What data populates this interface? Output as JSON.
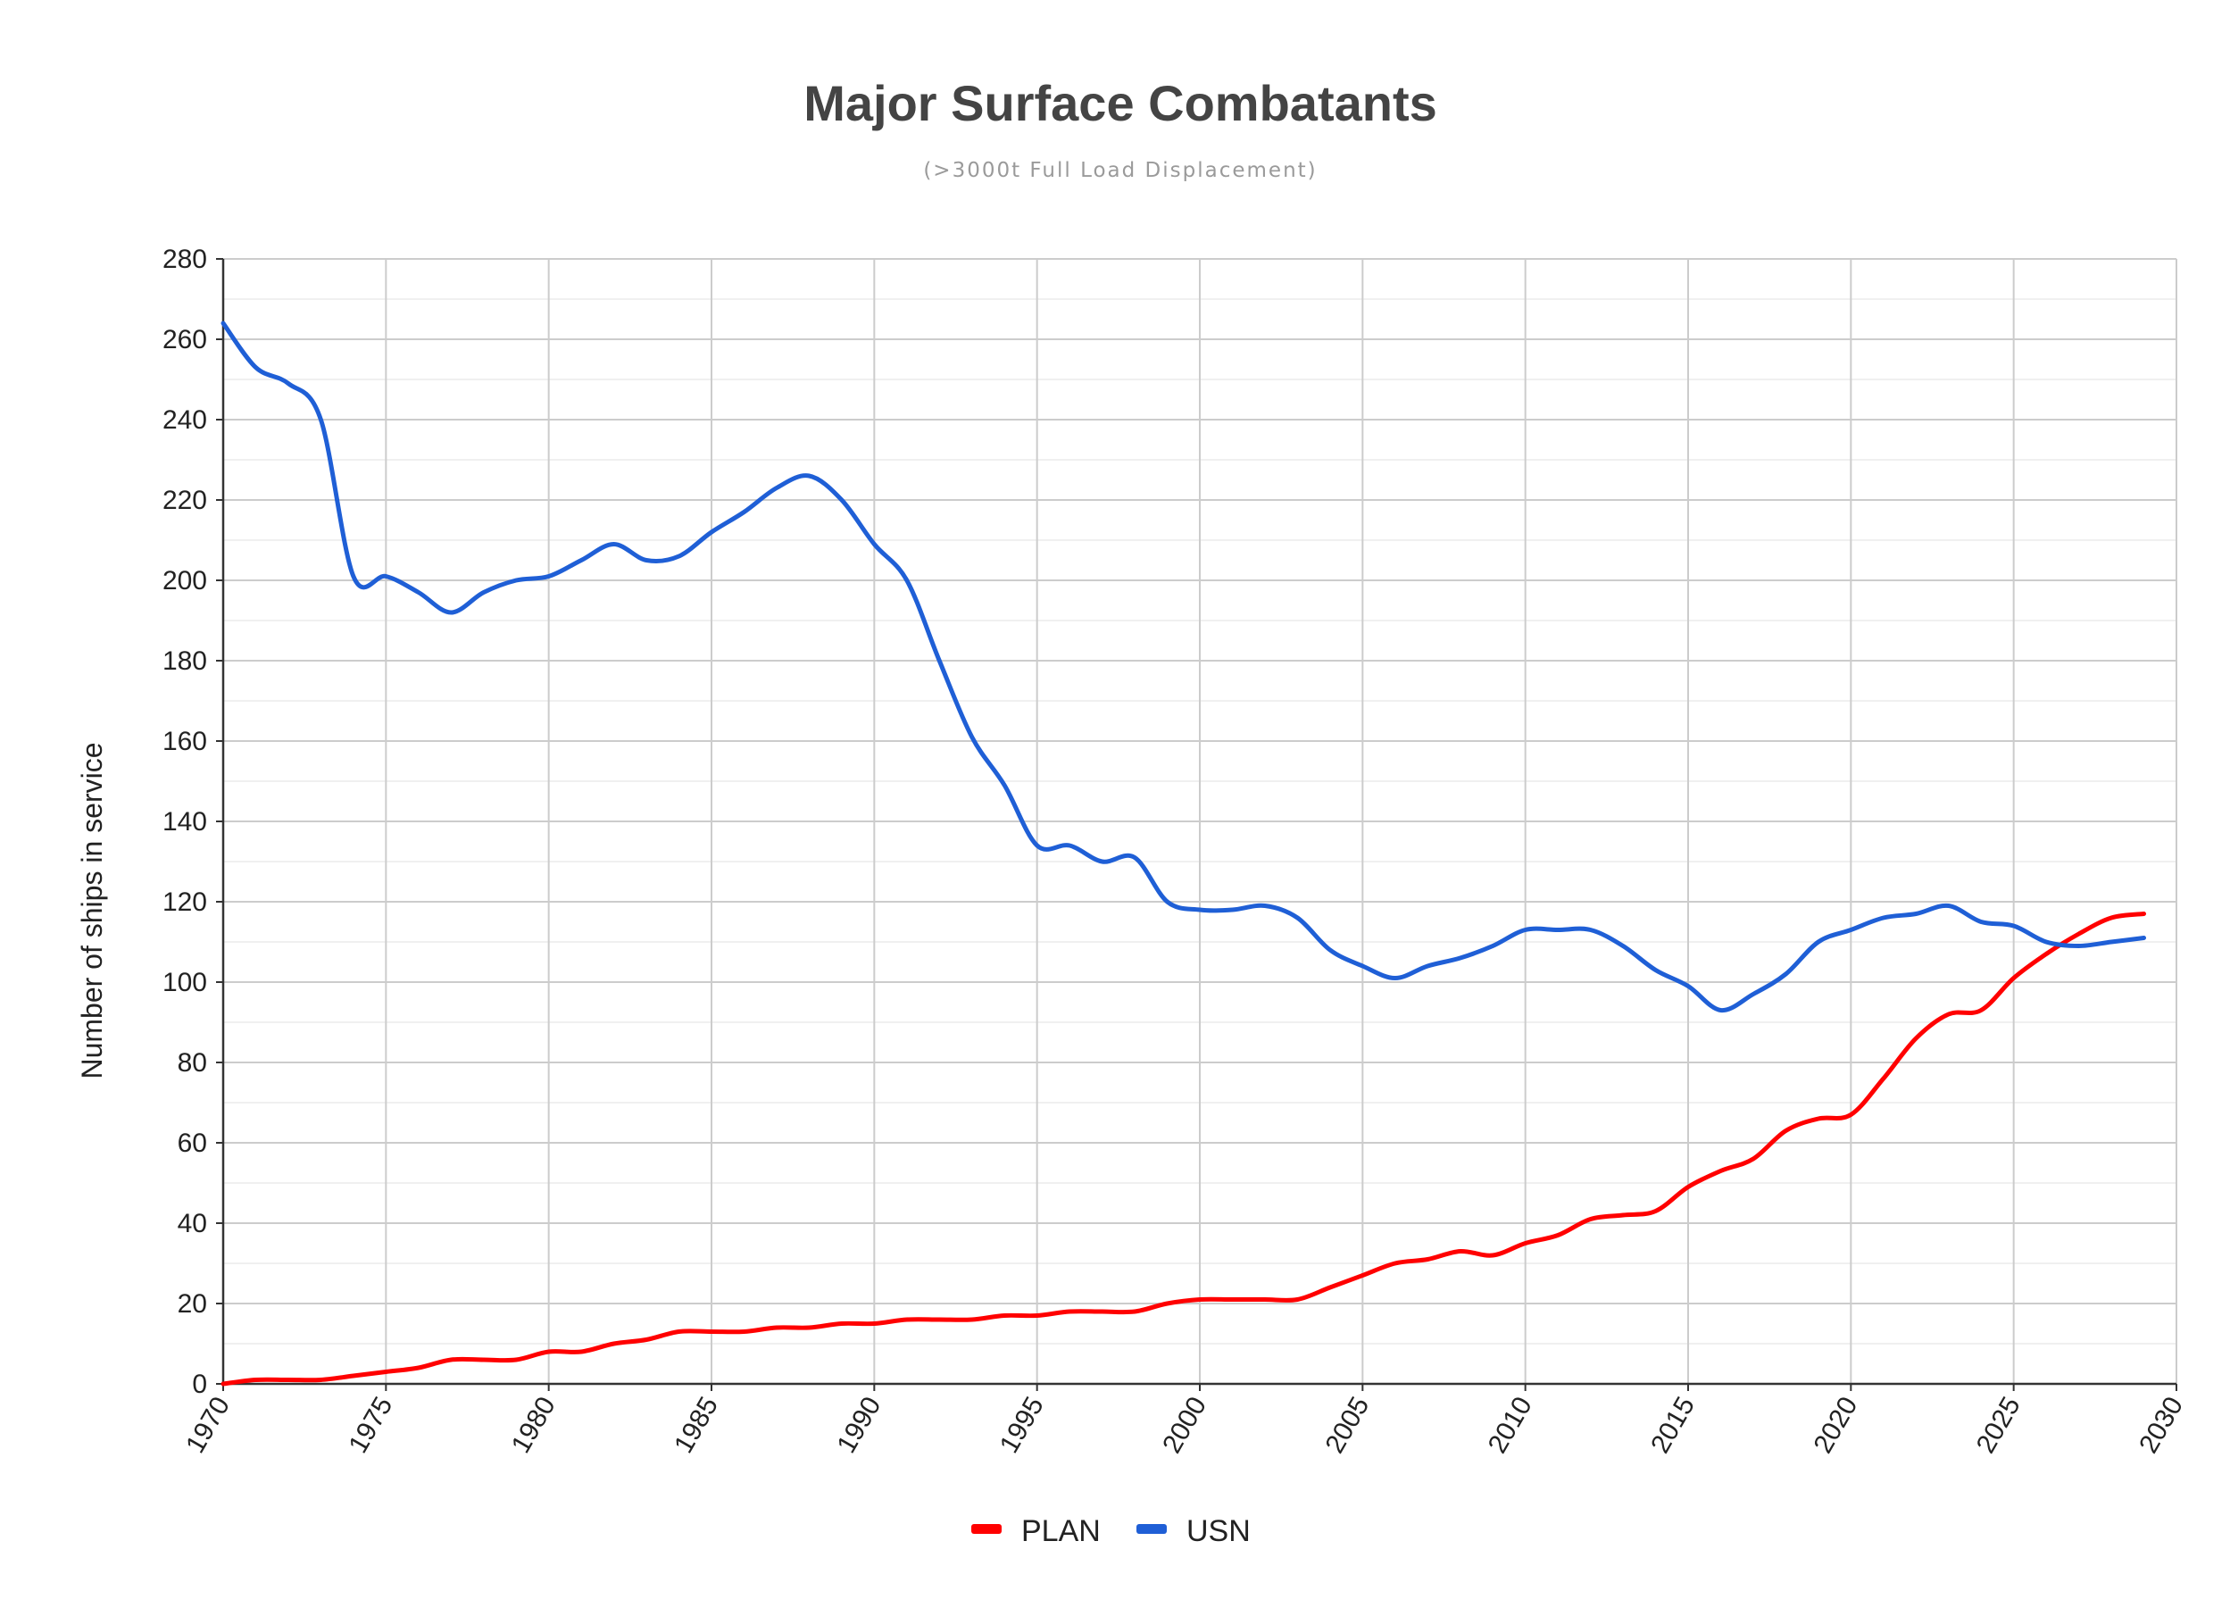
{
  "chart_data": {
    "type": "line",
    "title": "Major Surface Combatants",
    "subtitle": "(>3000t Full Load Displacement)",
    "xlabel": "",
    "ylabel": "Number of ships in service",
    "xlim": [
      1970,
      2030
    ],
    "ylim": [
      0,
      280
    ],
    "xticks": [
      1970,
      1975,
      1980,
      1985,
      1990,
      1995,
      2000,
      2005,
      2010,
      2015,
      2020,
      2025,
      2030
    ],
    "yticks": [
      0,
      20,
      40,
      60,
      80,
      100,
      120,
      140,
      160,
      180,
      200,
      220,
      240,
      260,
      280
    ],
    "grid": true,
    "legend_position": "bottom",
    "x": [
      1970,
      1971,
      1972,
      1973,
      1974,
      1975,
      1976,
      1977,
      1978,
      1979,
      1980,
      1981,
      1982,
      1983,
      1984,
      1985,
      1986,
      1987,
      1988,
      1989,
      1990,
      1991,
      1992,
      1993,
      1994,
      1995,
      1996,
      1997,
      1998,
      1999,
      2000,
      2001,
      2002,
      2003,
      2004,
      2005,
      2006,
      2007,
      2008,
      2009,
      2010,
      2011,
      2012,
      2013,
      2014,
      2015,
      2016,
      2017,
      2018,
      2019,
      2020,
      2021,
      2022,
      2023,
      2024,
      2025,
      2026,
      2027,
      2028,
      2029
    ],
    "series": [
      {
        "name": "PLAN",
        "color": "#ff0000",
        "values": [
          0,
          1,
          1,
          1,
          2,
          3,
          4,
          6,
          6,
          6,
          8,
          8,
          10,
          11,
          13,
          13,
          13,
          14,
          14,
          15,
          15,
          16,
          16,
          16,
          17,
          17,
          18,
          18,
          18,
          20,
          21,
          21,
          21,
          21,
          24,
          27,
          30,
          31,
          33,
          32,
          35,
          37,
          41,
          42,
          43,
          49,
          53,
          56,
          63,
          66,
          67,
          76,
          86,
          92,
          93,
          101,
          107,
          112,
          116,
          117
        ]
      },
      {
        "name": "USN",
        "color": "#1f5fd6",
        "values": [
          264,
          253,
          249,
          240,
          201,
          201,
          197,
          192,
          197,
          200,
          201,
          205,
          209,
          205,
          206,
          212,
          217,
          223,
          226,
          220,
          209,
          200,
          180,
          161,
          149,
          134,
          134,
          130,
          131,
          120,
          118,
          118,
          119,
          116,
          108,
          104,
          101,
          104,
          106,
          109,
          113,
          113,
          113,
          109,
          103,
          99,
          93,
          97,
          102,
          110,
          113,
          116,
          117,
          119,
          115,
          114,
          110,
          109,
          110,
          111
        ]
      }
    ]
  }
}
